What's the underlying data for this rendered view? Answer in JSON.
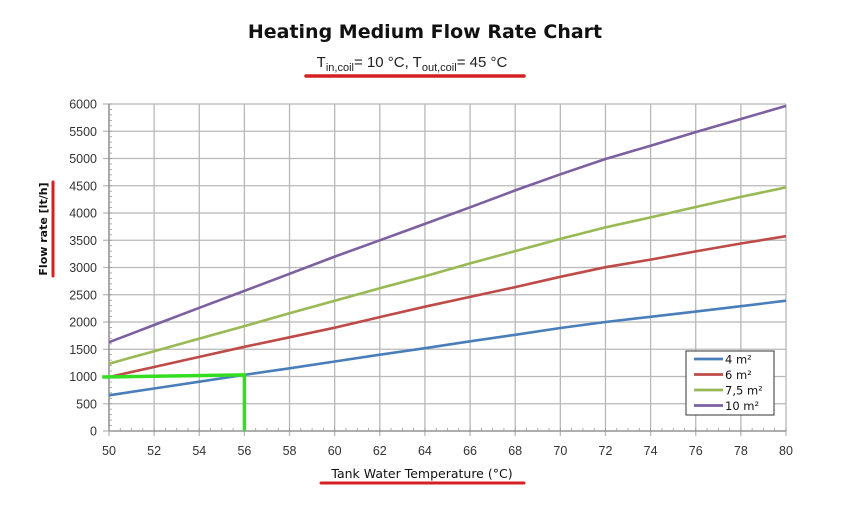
{
  "chart_data": {
    "type": "line",
    "title": "Heating Medium Flow Rate Chart",
    "subtitle": {
      "t_in_label": "T",
      "t_in_sub": "in,coil",
      "t_in_value": "= 10 °C, ",
      "t_out_label": "T",
      "t_out_sub": "out,coil",
      "t_out_value": "= 45 °C"
    },
    "xlabel": "Tank Water Temperature (°C)",
    "ylabel": "Flow rate [lt/h]",
    "xlim": [
      50,
      80
    ],
    "ylim": [
      0,
      6000
    ],
    "x_ticks": [
      "50",
      "52",
      "54",
      "56",
      "58",
      "60",
      "62",
      "64",
      "66",
      "68",
      "70",
      "72",
      "74",
      "76",
      "78",
      "80"
    ],
    "y_ticks": [
      "0",
      "500",
      "1000",
      "1500",
      "2000",
      "2500",
      "3000",
      "3500",
      "4000",
      "4500",
      "5000",
      "5500",
      "6000"
    ],
    "grid": true,
    "legend_position": "bottom-right",
    "x": [
      50,
      52,
      54,
      56,
      58,
      60,
      62,
      64,
      66,
      68,
      70,
      72,
      74,
      76,
      78,
      80
    ],
    "series": [
      {
        "name": "4 m²",
        "color": "#4a7ebb",
        "values": [
          655,
          780,
          905,
          1030,
          1150,
          1275,
          1400,
          1520,
          1645,
          1765,
          1890,
          2000,
          2095,
          2190,
          2290,
          2390
        ]
      },
      {
        "name": "6 m²",
        "color": "#be4b48",
        "values": [
          990,
          1175,
          1360,
          1545,
          1720,
          1895,
          2090,
          2280,
          2460,
          2640,
          2830,
          3005,
          3145,
          3295,
          3440,
          3575
        ]
      },
      {
        "name": "7,5 m²",
        "color": "#98b954",
        "values": [
          1235,
          1465,
          1695,
          1925,
          2160,
          2390,
          2620,
          2840,
          3075,
          3300,
          3525,
          3735,
          3920,
          4110,
          4295,
          4470
        ]
      },
      {
        "name": "10 m²",
        "color": "#7d60a0",
        "values": [
          1630,
          1945,
          2260,
          2570,
          2885,
          3200,
          3500,
          3800,
          4105,
          4415,
          4710,
          4990,
          5235,
          5485,
          5725,
          5965
        ]
      }
    ],
    "annotations": {
      "marker_color": "#33dd22",
      "marker_path": [
        [
          49.7,
          990
        ],
        [
          56,
          1030
        ],
        [
          56,
          0
        ]
      ],
      "highlight_color": "#d42020"
    }
  }
}
